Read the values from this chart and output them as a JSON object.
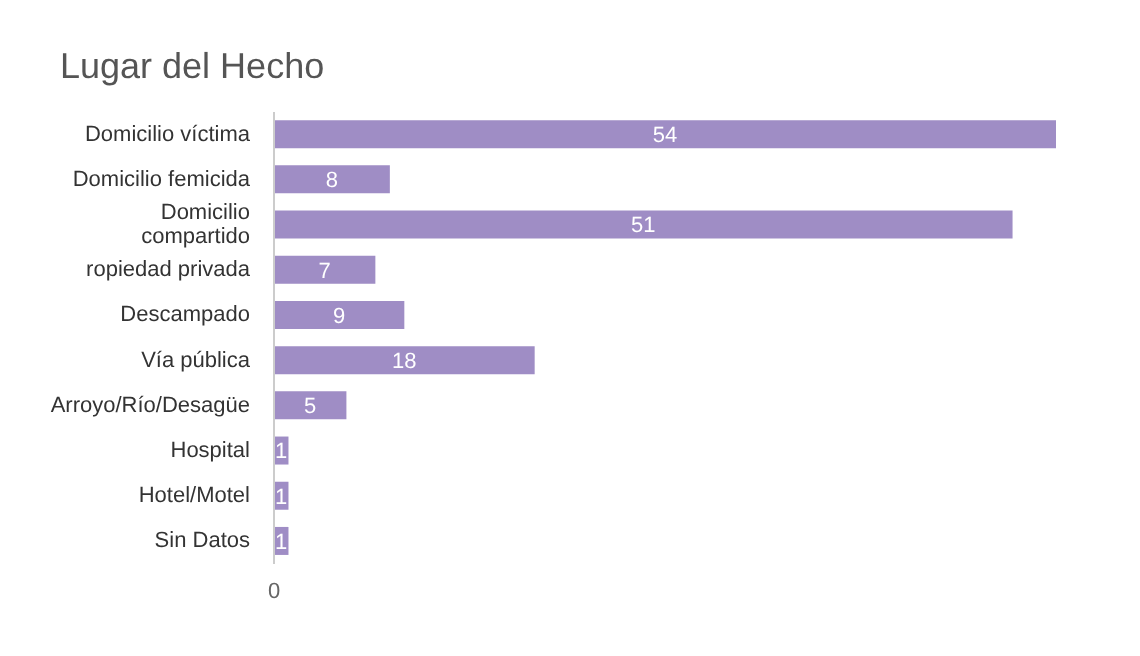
{
  "chart_data": {
    "type": "bar",
    "orientation": "horizontal",
    "title": "Lugar del Hecho",
    "categories": [
      "Domicilio víctima",
      "Domicilio femicida",
      "Domicilio compartido",
      "ropiedad privada",
      "Descampado",
      "Vía pública",
      "Arroyo/Río/Desagüe",
      "Hospital",
      "Hotel/Motel",
      "Sin Datos"
    ],
    "values": [
      54,
      8,
      51,
      7,
      9,
      18,
      5,
      1,
      1,
      1
    ],
    "data_labels": true,
    "annotations": [
      "0"
    ],
    "color": "#9f8dc5"
  }
}
